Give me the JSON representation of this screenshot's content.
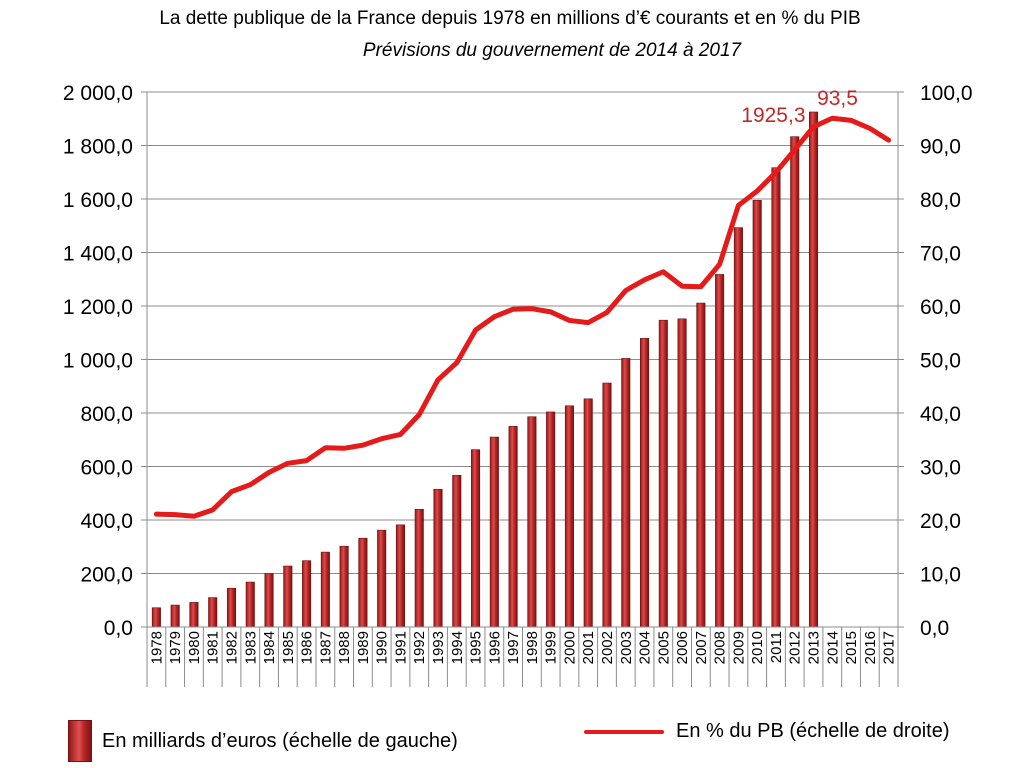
{
  "title": "La dette publique de la France depuis 1978 en millions d’€ courants et en % du PIB",
  "subtitle": "Prévisions du gouvernement de 2014 à 2017",
  "legend": {
    "bars": "En milliards d’euros (échelle de gauche)",
    "line": "En % du PB (échelle de droite)"
  },
  "colors": {
    "bar": "#c0292b",
    "line": "#e51b1b",
    "annotation": "#c0292b",
    "grid": "#8c8c8c"
  },
  "chart_data": {
    "type": "bar+line",
    "categories": [
      "1978",
      "1979",
      "1980",
      "1981",
      "1982",
      "1983",
      "1984",
      "1985",
      "1986",
      "1987",
      "1988",
      "1989",
      "1990",
      "1991",
      "1992",
      "1993",
      "1994",
      "1995",
      "1996",
      "1997",
      "1998",
      "1999",
      "2000",
      "2001",
      "2002",
      "2003",
      "2004",
      "2005",
      "2006",
      "2007",
      "2008",
      "2009",
      "2010",
      "2011",
      "2012",
      "2013",
      "2014",
      "2015",
      "2016",
      "2017"
    ],
    "left_axis": {
      "ylim": [
        0,
        2000
      ],
      "ticks": [
        "0,0",
        "200,0",
        "400,0",
        "600,0",
        "800,0",
        "1 000,0",
        "1 200,0",
        "1 400,0",
        "1 600,0",
        "1 800,0",
        "2 000,0"
      ]
    },
    "right_axis": {
      "ylim": [
        0,
        100
      ],
      "ticks": [
        "0,0",
        "10,0",
        "20,0",
        "30,0",
        "40,0",
        "50,0",
        "60,0",
        "70,0",
        "80,0",
        "90,0",
        "100,0"
      ]
    },
    "series": [
      {
        "name": "En milliards d’euros (échelle de gauche)",
        "type": "bar",
        "axis": "left",
        "values": [
          72,
          82,
          92,
          110,
          145,
          168,
          200,
          228,
          248,
          280,
          302,
          332,
          362,
          382,
          440,
          515,
          567,
          663,
          710,
          750,
          786,
          804,
          827,
          853,
          912,
          1004,
          1079,
          1147,
          1152,
          1211,
          1318,
          1493,
          1595,
          1717,
          1833,
          1925.3,
          null,
          null,
          null,
          null
        ]
      },
      {
        "name": "En % du PB (échelle de droite)",
        "type": "line",
        "axis": "right",
        "values": [
          21.1,
          21.0,
          20.7,
          21.9,
          25.3,
          26.6,
          28.9,
          30.6,
          31.1,
          33.5,
          33.4,
          34.0,
          35.2,
          36.0,
          39.7,
          46.2,
          49.4,
          55.5,
          58.0,
          59.4,
          59.5,
          58.9,
          57.3,
          56.9,
          58.8,
          62.9,
          64.9,
          66.4,
          63.7,
          63.6,
          67.8,
          78.8,
          81.5,
          85.0,
          89.2,
          93.5,
          95.1,
          94.7,
          93.2,
          91.0
        ]
      }
    ],
    "annotations": [
      {
        "text": "1925,3",
        "category": "2013",
        "series": "bars"
      },
      {
        "text": "93,5",
        "category": "2013",
        "series": "line"
      }
    ],
    "grid": true,
    "legend_position": "bottom"
  }
}
